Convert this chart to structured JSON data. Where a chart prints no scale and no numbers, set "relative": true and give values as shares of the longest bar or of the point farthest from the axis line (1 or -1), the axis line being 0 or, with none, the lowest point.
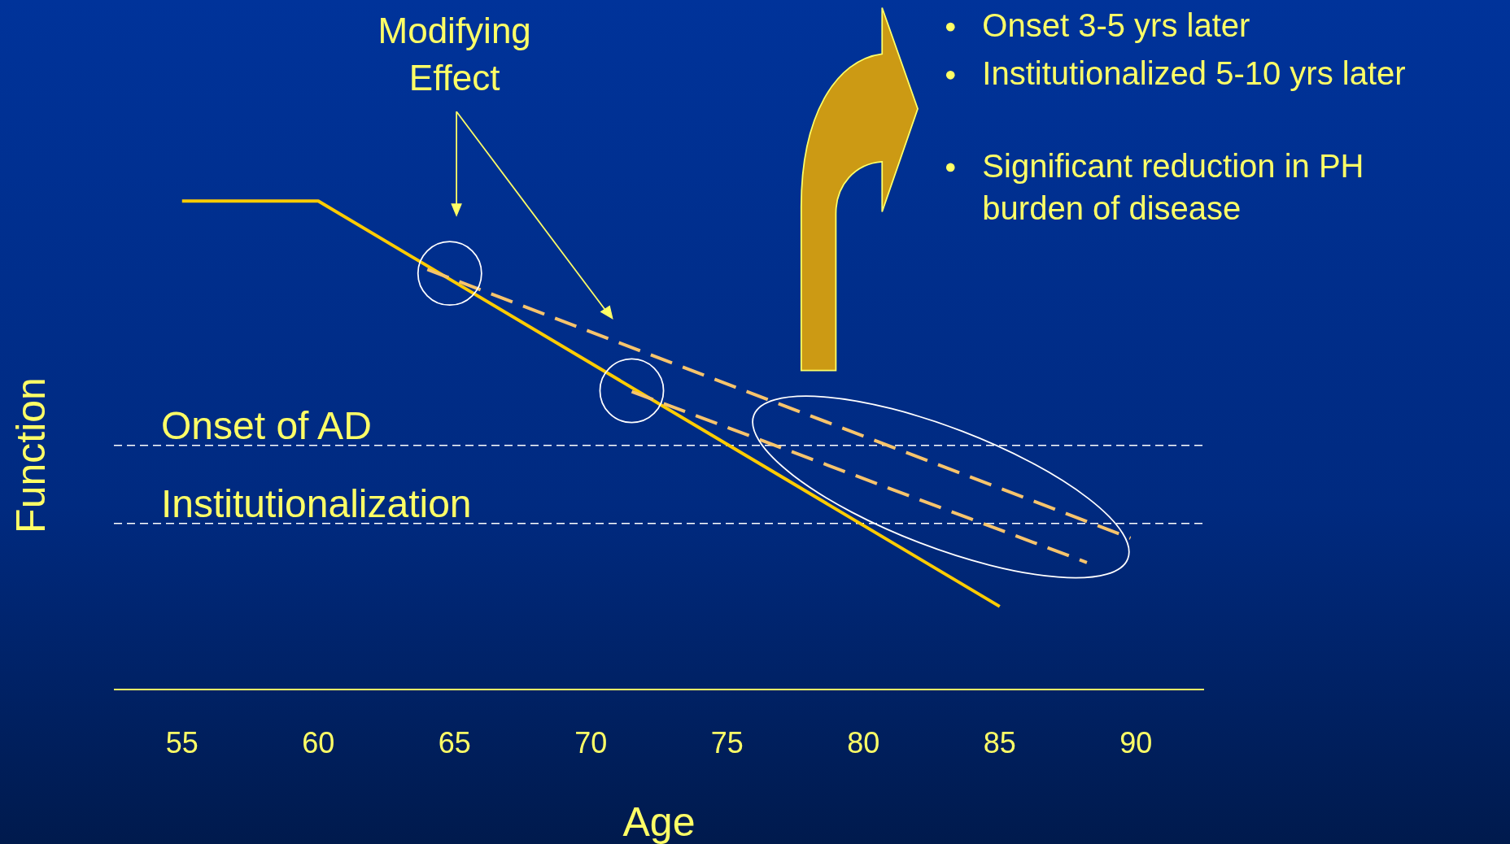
{
  "chart_data": {
    "type": "line",
    "relative": true,
    "xlabel": "Age",
    "ylabel": "Function",
    "xlim": [
      52.5,
      92.5
    ],
    "xticks": [
      55,
      60,
      65,
      70,
      75,
      80,
      85,
      90
    ],
    "marker": "none",
    "series": [
      {
        "x": [
          55,
          60,
          85
        ],
        "values": [
          1,
          1,
          0.17
        ],
        "color": "#ffcc00",
        "line_style": "solid"
      },
      {
        "x": [
          64,
          89.8
        ],
        "values": [
          0.86,
          0.31
        ],
        "color": "#f7c46c",
        "line_style": "dashed"
      },
      {
        "x": [
          71.5,
          88.2
        ],
        "values": [
          0.61,
          0.26
        ],
        "color": "#f7c46c",
        "line_style": "dashed"
      }
    ],
    "ref_lines": [
      {
        "axis": "y",
        "value": 0.5,
        "label": "Onset of AD",
        "color": "#ffffff",
        "line_style": "dashed"
      },
      {
        "axis": "y",
        "value": 0.34,
        "label": "Institutionalization",
        "color": "#ffffff",
        "line_style": "dashed"
      }
    ],
    "annotations": [
      "Modifying Effect",
      "Onset 3-5 yrs later",
      "Institutionalized 5-10 yrs later",
      "Significant reduction in PH burden of disease"
    ]
  }
}
